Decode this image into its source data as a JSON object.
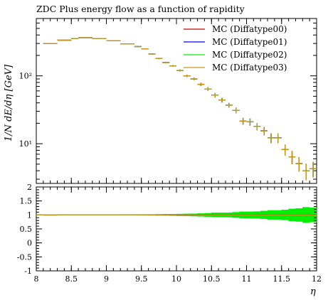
{
  "chart_data": {
    "type": "line",
    "title": "ZDC Plus energy flow as a function of rapidity",
    "xlabel": "η",
    "ylabel": "1/N dE/dη [GeV]",
    "xlim": [
      8,
      12
    ],
    "main_yscale": "log",
    "main_ylim": [
      2.6,
      700
    ],
    "main_yticks": [
      {
        "value": 10,
        "label": "10¹"
      },
      {
        "value": 100,
        "label": "10²"
      }
    ],
    "ratio_ylim": [
      -1,
      2
    ],
    "ratio_yticks": [
      "2",
      "1.5",
      "1",
      "0.5",
      "0",
      "-0.5",
      "-1"
    ],
    "xticks": [
      "8",
      "8.5",
      "9",
      "9.5",
      "10",
      "10.5",
      "11",
      "11.5",
      "12"
    ],
    "legend_position": "top-right",
    "series": [
      {
        "name": "MC (Diffatype00)",
        "color": "#cc0000"
      },
      {
        "name": "MC (Diffatype01)",
        "color": "#0000ff"
      },
      {
        "name": "MC (Diffatype02)",
        "color": "#00ee00"
      },
      {
        "name": "MC (Diffatype03)",
        "color": "#c8961e"
      }
    ],
    "bins": [
      {
        "lo": 8.1,
        "hi": 8.3,
        "y": 300,
        "err": 0
      },
      {
        "lo": 8.3,
        "hi": 8.5,
        "y": 335,
        "err": 3
      },
      {
        "lo": 8.5,
        "hi": 8.6,
        "y": 355,
        "err": 3
      },
      {
        "lo": 8.6,
        "hi": 8.8,
        "y": 365,
        "err": 3
      },
      {
        "lo": 8.8,
        "hi": 9.0,
        "y": 355,
        "err": 3
      },
      {
        "lo": 9.0,
        "hi": 9.2,
        "y": 330,
        "err": 3
      },
      {
        "lo": 9.2,
        "hi": 9.4,
        "y": 295,
        "err": 3
      },
      {
        "lo": 9.4,
        "hi": 9.5,
        "y": 270,
        "err": 4
      },
      {
        "lo": 9.5,
        "hi": 9.6,
        "y": 250,
        "err": 4
      },
      {
        "lo": 9.6,
        "hi": 9.7,
        "y": 210,
        "err": 4
      },
      {
        "lo": 9.7,
        "hi": 9.8,
        "y": 180,
        "err": 4
      },
      {
        "lo": 9.8,
        "hi": 9.9,
        "y": 157,
        "err": 4
      },
      {
        "lo": 9.9,
        "hi": 10.0,
        "y": 140,
        "err": 4
      },
      {
        "lo": 10.0,
        "hi": 10.1,
        "y": 120,
        "err": 4
      },
      {
        "lo": 10.1,
        "hi": 10.2,
        "y": 100,
        "err": 4
      },
      {
        "lo": 10.2,
        "hi": 10.3,
        "y": 90,
        "err": 4
      },
      {
        "lo": 10.3,
        "hi": 10.4,
        "y": 75,
        "err": 4
      },
      {
        "lo": 10.4,
        "hi": 10.5,
        "y": 64,
        "err": 4
      },
      {
        "lo": 10.5,
        "hi": 10.6,
        "y": 52,
        "err": 4
      },
      {
        "lo": 10.6,
        "hi": 10.7,
        "y": 44,
        "err": 3.5
      },
      {
        "lo": 10.7,
        "hi": 10.8,
        "y": 37,
        "err": 3
      },
      {
        "lo": 10.8,
        "hi": 10.9,
        "y": 31,
        "err": 3
      },
      {
        "lo": 10.9,
        "hi": 11.0,
        "y": 21.5,
        "err": 2.5
      },
      {
        "lo": 11.0,
        "hi": 11.1,
        "y": 21,
        "err": 2.5
      },
      {
        "lo": 11.1,
        "hi": 11.2,
        "y": 18,
        "err": 2.2
      },
      {
        "lo": 11.2,
        "hi": 11.3,
        "y": 15.5,
        "err": 2.2
      },
      {
        "lo": 11.3,
        "hi": 11.4,
        "y": 12.2,
        "err": 2
      },
      {
        "lo": 11.4,
        "hi": 11.5,
        "y": 12.2,
        "err": 2
      },
      {
        "lo": 11.5,
        "hi": 11.6,
        "y": 8.2,
        "err": 1.5
      },
      {
        "lo": 11.6,
        "hi": 11.7,
        "y": 6.4,
        "err": 1.4
      },
      {
        "lo": 11.7,
        "hi": 11.8,
        "y": 5.1,
        "err": 1.2
      },
      {
        "lo": 11.8,
        "hi": 11.9,
        "y": 4.0,
        "err": 1.1
      },
      {
        "lo": 11.9,
        "hi": 12.0,
        "y": 4.3,
        "err": 1.1
      }
    ]
  }
}
